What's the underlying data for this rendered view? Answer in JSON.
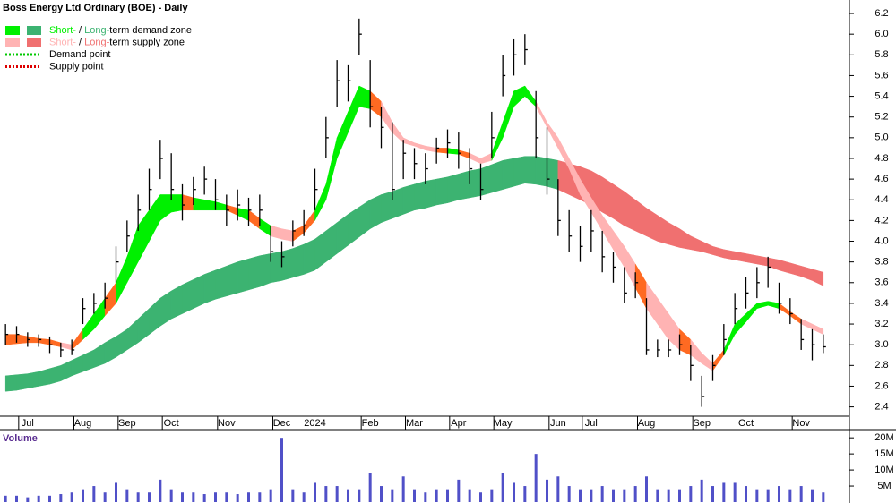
{
  "chart_data": [
    {
      "type": "hlc",
      "title": "Boss Energy Ltd Ordinary (BOE) - Daily",
      "categories": [
        null,
        null,
        "Jul",
        null,
        null,
        null,
        null,
        "Aug",
        null,
        null,
        null,
        "Sep",
        null,
        null,
        null,
        "Oct",
        null,
        null,
        null,
        null,
        "Nov",
        null,
        null,
        null,
        null,
        "Dec",
        null,
        null,
        "2024",
        null,
        null,
        null,
        null,
        "Feb",
        null,
        null,
        null,
        "Mar",
        null,
        null,
        null,
        "Apr",
        null,
        null,
        null,
        "May",
        null,
        null,
        null,
        null,
        "Jun",
        null,
        null,
        "Jul",
        null,
        null,
        null,
        null,
        "Aug",
        null,
        null,
        null,
        null,
        "Sep",
        null,
        null,
        null,
        "Oct",
        null,
        null,
        null,
        null,
        "Nov",
        null,
        null
      ],
      "high": [
        3.2,
        3.18,
        3.12,
        3.1,
        3.08,
        3.02,
        3.05,
        3.45,
        3.5,
        3.6,
        3.95,
        4.2,
        4.45,
        4.7,
        4.98,
        4.85,
        4.55,
        4.62,
        4.72,
        4.6,
        4.45,
        4.5,
        4.42,
        4.45,
        4.15,
        4.0,
        4.2,
        4.3,
        4.7,
        5.2,
        5.75,
        5.7,
        6.15,
        5.75,
        5.3,
        5.15,
        4.98,
        4.9,
        4.85,
        5.0,
        5.08,
        5.05,
        4.9,
        4.75,
        5.25,
        5.8,
        5.95,
        6.0,
        5.45,
        5.1,
        4.6,
        4.3,
        4.15,
        4.3,
        4.1,
        3.9,
        3.75,
        3.7,
        3.45,
        3.05,
        3.05,
        3.1,
        3.0,
        2.7,
        2.9,
        3.2,
        3.5,
        3.65,
        3.75,
        3.85,
        3.6,
        3.45,
        3.25,
        3.15,
        3.1
      ],
      "low": [
        3.0,
        3.02,
        2.98,
        2.98,
        2.92,
        2.88,
        2.9,
        3.2,
        3.3,
        3.35,
        3.6,
        3.9,
        4.1,
        4.3,
        4.6,
        4.4,
        4.2,
        4.35,
        4.45,
        4.3,
        4.15,
        4.2,
        4.15,
        4.15,
        3.8,
        3.75,
        3.95,
        4.05,
        4.3,
        4.8,
        5.3,
        5.35,
        5.8,
        5.1,
        4.9,
        4.4,
        4.6,
        4.6,
        4.55,
        4.75,
        4.8,
        4.7,
        4.55,
        4.4,
        4.8,
        5.4,
        5.6,
        5.7,
        4.8,
        4.45,
        4.05,
        3.9,
        3.8,
        3.9,
        3.7,
        3.6,
        3.4,
        3.45,
        2.9,
        2.88,
        2.88,
        2.9,
        2.65,
        2.4,
        2.65,
        2.9,
        3.2,
        3.35,
        3.45,
        3.55,
        3.3,
        3.2,
        2.95,
        2.85,
        2.92
      ],
      "close": [
        3.1,
        3.1,
        3.05,
        3.05,
        3.0,
        2.95,
        2.95,
        3.35,
        3.4,
        3.45,
        3.8,
        4.05,
        4.3,
        4.5,
        4.8,
        4.5,
        4.35,
        4.5,
        4.6,
        4.4,
        4.3,
        4.35,
        4.3,
        4.3,
        3.9,
        3.85,
        4.1,
        4.15,
        4.5,
        5.0,
        5.55,
        5.55,
        6.0,
        5.3,
        5.1,
        4.5,
        4.85,
        4.75,
        4.7,
        4.9,
        4.95,
        4.85,
        4.7,
        4.5,
        5.0,
        5.6,
        5.8,
        5.85,
        5.0,
        4.6,
        4.2,
        4.05,
        3.95,
        4.1,
        3.85,
        3.75,
        3.5,
        3.6,
        2.95,
        2.95,
        2.95,
        3.0,
        2.8,
        2.5,
        2.8,
        3.05,
        3.35,
        3.5,
        3.6,
        3.75,
        3.4,
        3.3,
        3.05,
        3.0,
        2.98
      ],
      "bar_color": "#000000",
      "short_zone": {
        "upper": [
          3.1,
          3.1,
          3.08,
          3.06,
          3.05,
          3.02,
          3.0,
          3.15,
          3.3,
          3.45,
          3.6,
          3.85,
          4.15,
          4.3,
          4.45,
          4.45,
          4.45,
          4.42,
          4.4,
          4.38,
          4.35,
          4.32,
          4.3,
          4.22,
          4.15,
          4.12,
          4.1,
          4.15,
          4.3,
          4.55,
          5.0,
          5.25,
          5.5,
          5.45,
          5.35,
          5.15,
          5.0,
          4.95,
          4.92,
          4.9,
          4.9,
          4.88,
          4.85,
          4.8,
          4.85,
          5.15,
          5.45,
          5.5,
          5.35,
          5.15,
          5.0,
          4.8,
          4.6,
          4.42,
          4.25,
          4.1,
          3.95,
          3.78,
          3.6,
          3.45,
          3.3,
          3.15,
          3.05,
          2.92,
          2.82,
          2.95,
          3.2,
          3.3,
          3.4,
          3.42,
          3.4,
          3.32,
          3.25,
          3.2,
          3.15
        ],
        "lower": [
          3.0,
          3.01,
          3.02,
          3.02,
          3.0,
          2.98,
          2.95,
          3.05,
          3.15,
          3.28,
          3.4,
          3.6,
          3.8,
          4.0,
          4.2,
          4.28,
          4.3,
          4.3,
          4.3,
          4.3,
          4.3,
          4.25,
          4.2,
          4.12,
          4.05,
          4.02,
          4.0,
          4.08,
          4.2,
          4.4,
          4.8,
          5.05,
          5.3,
          5.28,
          5.2,
          5.05,
          4.95,
          4.92,
          4.88,
          4.86,
          4.85,
          4.84,
          4.8,
          4.75,
          4.78,
          5.0,
          5.3,
          5.4,
          5.3,
          5.1,
          4.9,
          4.7,
          4.45,
          4.28,
          4.1,
          3.92,
          3.75,
          3.55,
          3.35,
          3.2,
          3.05,
          2.95,
          2.9,
          2.82,
          2.75,
          2.9,
          3.1,
          3.22,
          3.35,
          3.38,
          3.35,
          3.28,
          3.2,
          3.15,
          3.1
        ]
      },
      "long_zone": {
        "upper": [
          2.7,
          2.71,
          2.72,
          2.74,
          2.77,
          2.8,
          2.85,
          2.9,
          2.95,
          3.02,
          3.08,
          3.15,
          3.25,
          3.35,
          3.45,
          3.52,
          3.58,
          3.63,
          3.68,
          3.72,
          3.76,
          3.8,
          3.83,
          3.86,
          3.88,
          3.9,
          3.93,
          3.97,
          4.02,
          4.1,
          4.18,
          4.26,
          4.33,
          4.4,
          4.45,
          4.48,
          4.52,
          4.55,
          4.58,
          4.6,
          4.62,
          4.65,
          4.68,
          4.7,
          4.74,
          4.78,
          4.8,
          4.82,
          4.82,
          4.8,
          4.78,
          4.75,
          4.72,
          4.68,
          4.62,
          4.55,
          4.48,
          4.4,
          4.32,
          4.25,
          4.18,
          4.12,
          4.05,
          4.0,
          3.95,
          3.92,
          3.9,
          3.88,
          3.86,
          3.84,
          3.82,
          3.79,
          3.76,
          3.73,
          3.7
        ],
        "lower": [
          2.55,
          2.56,
          2.58,
          2.6,
          2.62,
          2.65,
          2.7,
          2.74,
          2.78,
          2.82,
          2.88,
          2.95,
          3.02,
          3.1,
          3.18,
          3.25,
          3.3,
          3.35,
          3.4,
          3.44,
          3.47,
          3.5,
          3.53,
          3.56,
          3.6,
          3.62,
          3.65,
          3.68,
          3.72,
          3.8,
          3.88,
          3.96,
          4.04,
          4.12,
          4.18,
          4.22,
          4.26,
          4.3,
          4.32,
          4.35,
          4.37,
          4.4,
          4.42,
          4.44,
          4.47,
          4.5,
          4.53,
          4.56,
          4.55,
          4.53,
          4.5,
          4.45,
          4.4,
          4.35,
          4.28,
          4.22,
          4.15,
          4.1,
          4.05,
          4.0,
          3.97,
          3.94,
          3.92,
          3.9,
          3.87,
          3.84,
          3.82,
          3.8,
          3.78,
          3.76,
          3.72,
          3.69,
          3.66,
          3.62,
          3.57
        ]
      },
      "transition_color": "#ff6a22",
      "legend": [
        {
          "short": "Short-",
          "sep": " / ",
          "long": "Long-",
          "text": "term demand zone",
          "short_color": "#00f000",
          "long_color": "#3cb371"
        },
        {
          "short": "Short-",
          "sep": " / ",
          "long": "Long-",
          "text": "term supply zone",
          "short_color": "#ffb3b3",
          "long_color": "#f07070"
        },
        {
          "text": "Demand point",
          "color": "#00c800"
        },
        {
          "text": "Supply point",
          "color": "#dd0000"
        }
      ],
      "ylim": [
        2.31,
        6.33
      ],
      "yticks": [
        2.4,
        2.6,
        2.8,
        {
          "value": 3,
          "label": "3.0"
        },
        3.2,
        3.4,
        3.6,
        3.8,
        {
          "value": 4,
          "label": "4.0"
        },
        4.2,
        4.4,
        4.6,
        4.8,
        {
          "value": 5,
          "label": "5.0"
        },
        5.2,
        5.4,
        5.6,
        5.8,
        {
          "value": 6,
          "label": "6.0"
        },
        6.2
      ]
    },
    {
      "type": "bar",
      "title": "Volume",
      "title_color": "#5a2d91",
      "values": [
        2,
        2,
        1.5,
        2,
        2,
        2.5,
        3,
        4,
        5,
        3,
        6,
        4,
        3,
        3,
        7,
        4,
        3,
        3,
        2.5,
        3,
        3,
        2.5,
        3,
        3,
        4,
        20,
        4,
        3,
        6,
        5,
        5,
        4,
        4,
        9,
        5,
        4,
        8,
        4,
        3,
        4,
        4,
        7,
        4,
        3,
        4,
        9,
        6,
        5,
        15,
        7,
        8,
        5,
        4,
        4,
        5,
        4,
        4,
        5,
        8,
        4,
        4,
        4,
        5,
        7,
        5,
        6,
        6,
        5,
        4,
        4,
        5,
        4,
        5,
        4,
        3
      ],
      "color": "#5050c8",
      "ylim": [
        0,
        22
      ],
      "yticks": [
        {
          "value": 5,
          "label": "5M"
        },
        {
          "value": 10,
          "label": "10M"
        },
        {
          "value": 15,
          "label": "15M"
        },
        {
          "value": 20,
          "label": "20M"
        }
      ]
    }
  ]
}
